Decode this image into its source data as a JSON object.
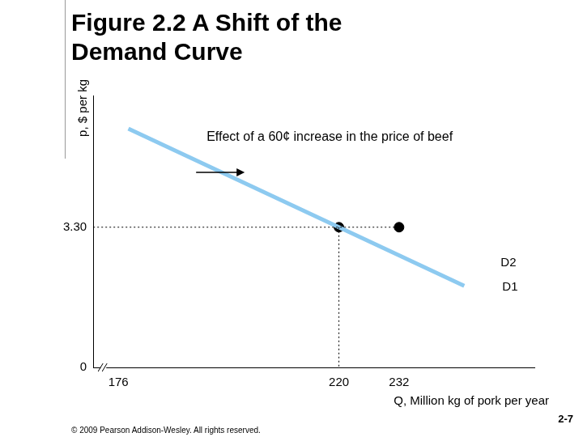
{
  "chart_data": {
    "type": "line",
    "title": "Figure 2.2 A Shift of the Demand Curve",
    "x_label": "Q, Million kg of pork per year",
    "y_label": "p, $ per kg",
    "series": [
      {
        "name": "D1",
        "color": "#8dcaf0",
        "x": [
          178,
          245
        ],
        "values": [
          5.62,
          1.92
        ]
      }
    ],
    "points": {
      "x": [
        220,
        232
      ],
      "y": [
        3.3,
        3.3
      ],
      "color": "#000000"
    },
    "annotations": [
      "Effect of a 60¢ increase in the price of beef",
      "D2"
    ],
    "xlim": [
      171,
      259
    ],
    "xticks": [
      176,
      220,
      232
    ],
    "ylim": [
      0,
      6.4
    ],
    "yticks": [
      0,
      {
        "value": 3.3,
        "label": "3.30"
      }
    ],
    "grid": false
  },
  "footer": {
    "copyright": "© 2009 Pearson Addison-Wesley. All rights reserved.",
    "page": "2-7"
  }
}
